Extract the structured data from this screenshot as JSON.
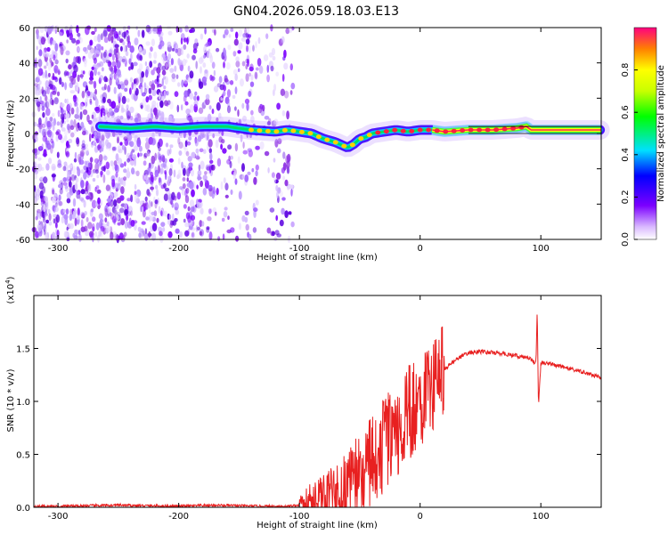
{
  "title": "GN04.2026.059.18.03.E13",
  "chart_data": [
    {
      "type": "heatmap",
      "xlabel": "Height of straight line (km)",
      "ylabel": "Frequency (Hz)",
      "xlim": [
        -320,
        150
      ],
      "ylim": [
        -60,
        60
      ],
      "xticks": [
        -300,
        -200,
        -100,
        0,
        100
      ],
      "yticks": [
        -60,
        -40,
        -20,
        0,
        20,
        40,
        60
      ],
      "colorbar": {
        "label": "Normalized spectral amplitude",
        "range": [
          0,
          1
        ],
        "ticks": [
          0.0,
          0.2,
          0.4,
          0.6,
          0.8
        ]
      },
      "ridge": {
        "x": [
          -265,
          -240,
          -220,
          -200,
          -180,
          -160,
          -140,
          -120,
          -110,
          -100,
          -90,
          -80,
          -70,
          -60,
          -55,
          -50,
          -45,
          -40,
          -30,
          -20,
          -10,
          0,
          10,
          20,
          40,
          60,
          80,
          88,
          92,
          96,
          100,
          120,
          150
        ],
        "y": [
          4,
          3,
          4,
          3,
          4,
          4,
          2,
          1,
          2,
          1,
          0,
          -3,
          -5,
          -8,
          -6,
          -3,
          -2,
          0,
          1,
          2,
          1,
          2,
          2,
          1,
          2,
          2,
          3,
          4,
          2,
          2,
          2,
          2,
          2
        ]
      }
    },
    {
      "type": "line",
      "xlabel": "Height of straight line (km)",
      "ylabel": "SNR (10 * v/v)",
      "y_multiplier": "(x10^4)",
      "xlim": [
        -320,
        150
      ],
      "ylim": [
        0,
        2.0
      ],
      "xticks": [
        -300,
        -200,
        -100,
        0,
        100
      ],
      "yticks": [
        0.0,
        0.5,
        1.0,
        1.5
      ],
      "color": "#e82020",
      "x": [
        -320,
        -300,
        -250,
        -200,
        -170,
        -130,
        -110,
        -100,
        -90,
        -80,
        -70,
        -60,
        -50,
        -40,
        -30,
        -20,
        -10,
        0,
        10,
        20,
        30,
        40,
        50,
        60,
        70,
        80,
        90,
        96,
        97,
        98,
        100,
        110,
        120,
        130,
        140,
        150
      ],
      "y": [
        0.01,
        0.01,
        0.02,
        0.01,
        0.02,
        0.01,
        0.01,
        0.02,
        0.04,
        0.08,
        0.13,
        0.22,
        0.32,
        0.45,
        0.58,
        0.72,
        0.88,
        1.02,
        1.18,
        1.3,
        1.4,
        1.46,
        1.47,
        1.46,
        1.45,
        1.43,
        1.41,
        1.36,
        1.9,
        0.95,
        1.36,
        1.35,
        1.32,
        1.29,
        1.26,
        1.22
      ]
    }
  ]
}
